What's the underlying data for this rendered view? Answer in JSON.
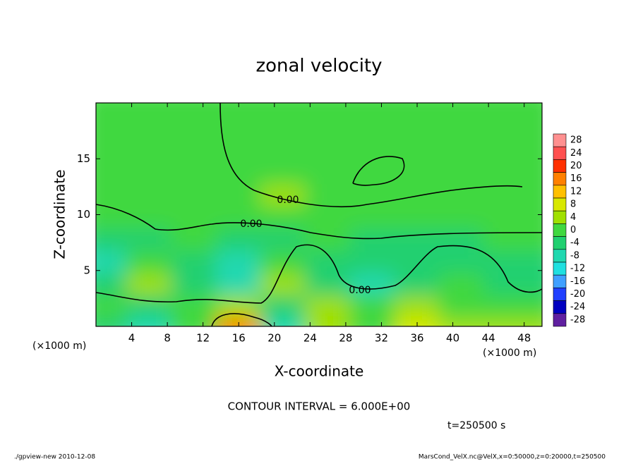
{
  "chart_data": {
    "type": "contour",
    "title": "zonal velocity",
    "x_label": "X-coordinate",
    "y_label": "Z-coordinate",
    "x_unit": "(×1000 m)",
    "y_unit": "(×1000 m)",
    "xlim": [
      0,
      50
    ],
    "ylim": [
      0,
      20
    ],
    "xticks": [
      4,
      8,
      12,
      16,
      20,
      24,
      28,
      32,
      36,
      40,
      44,
      48
    ],
    "yticks": [
      5,
      10,
      15
    ],
    "x": [
      2.5,
      7.5,
      12.5,
      17.5,
      22.5,
      27.5,
      32.5,
      37.5,
      42.5,
      47.5
    ],
    "z": [
      1,
      3,
      5,
      7,
      9,
      11,
      13,
      15,
      17,
      19
    ],
    "values": [
      [
        -4,
        -8,
        -2,
        14,
        -10,
        4,
        -2,
        6,
        2,
        4
      ],
      [
        -2,
        -4,
        0,
        2,
        -4,
        2,
        0,
        2,
        0,
        -2
      ],
      [
        -6,
        4,
        -4,
        -10,
        4,
        -4,
        -8,
        -6,
        -2,
        -4
      ],
      [
        -8,
        0,
        -6,
        -10,
        -2,
        -4,
        -6,
        -4,
        -4,
        -6
      ],
      [
        -4,
        -4,
        -2,
        -4,
        -4,
        -2,
        -4,
        -4,
        -4,
        -2
      ],
      [
        -2,
        -2,
        -2,
        0,
        -2,
        -2,
        -2,
        -2,
        -2,
        -2
      ],
      [
        -2,
        -2,
        -2,
        0,
        2,
        -2,
        -2,
        -2,
        -2,
        -2
      ],
      [
        -2,
        -2,
        -2,
        -2,
        0,
        -2,
        0,
        -2,
        -2,
        -2
      ],
      [
        -2,
        -2,
        -2,
        -2,
        0,
        0,
        0,
        0,
        -2,
        -2
      ],
      [
        -2,
        -2,
        -2,
        -2,
        0,
        0,
        0,
        0,
        -2,
        -2
      ]
    ],
    "contour_labels": [
      "0.00",
      "0.00",
      "0.00"
    ],
    "colorbar": {
      "levels": [
        28,
        24,
        20,
        16,
        12,
        8,
        4,
        0,
        -4,
        -8,
        -12,
        -16,
        -20,
        -24,
        -28
      ],
      "colors": [
        "#ff9090",
        "#ff5050",
        "#ff3000",
        "#ff8000",
        "#ffc000",
        "#d8e800",
        "#a0e000",
        "#40d840",
        "#20d070",
        "#20d8b0",
        "#20e0e0",
        "#40a0ff",
        "#2040ff",
        "#0000c0",
        "#6020a0"
      ]
    },
    "contour_interval": "CONTOUR INTERVAL = 6.000E+00",
    "time": "t=250500 s",
    "footer_left": "./gpview-new  2010-12-08",
    "footer_right": "MarsCond_VelX.nc@VelX,x=0:50000,z=0:20000,t=250500"
  }
}
